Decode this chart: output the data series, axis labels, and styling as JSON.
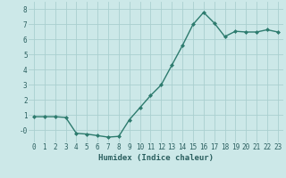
{
  "x": [
    0,
    1,
    2,
    3,
    4,
    5,
    6,
    7,
    8,
    9,
    10,
    11,
    12,
    13,
    14,
    15,
    16,
    17,
    18,
    19,
    20,
    21,
    22,
    23
  ],
  "y": [
    0.9,
    0.9,
    0.9,
    0.85,
    -0.2,
    -0.25,
    -0.35,
    -0.45,
    -0.4,
    0.7,
    1.5,
    2.3,
    3.0,
    4.3,
    5.6,
    7.0,
    7.8,
    7.1,
    6.2,
    6.55,
    6.5,
    6.5,
    6.65,
    6.5
  ],
  "line_color": "#2d7b6e",
  "marker": "D",
  "marker_size": 2.0,
  "bg_color": "#cce8e8",
  "grid_color": "#aacfcf",
  "xlabel": "Humidex (Indice chaleur)",
  "xlim": [
    -0.5,
    23.5
  ],
  "ylim": [
    -0.8,
    8.5
  ],
  "yticks": [
    0,
    1,
    2,
    3,
    4,
    5,
    6,
    7,
    8
  ],
  "ytick_labels": [
    "-0",
    "1",
    "2",
    "3",
    "4",
    "5",
    "6",
    "7",
    "8"
  ],
  "xtick_labels": [
    "0",
    "1",
    "2",
    "3",
    "4",
    "5",
    "6",
    "7",
    "8",
    "9",
    "10",
    "11",
    "12",
    "13",
    "14",
    "15",
    "16",
    "17",
    "18",
    "19",
    "20",
    "21",
    "22",
    "23"
  ],
  "font_color": "#2a5f5f",
  "label_fontsize": 6.5,
  "tick_fontsize": 5.5,
  "line_width": 1.0
}
